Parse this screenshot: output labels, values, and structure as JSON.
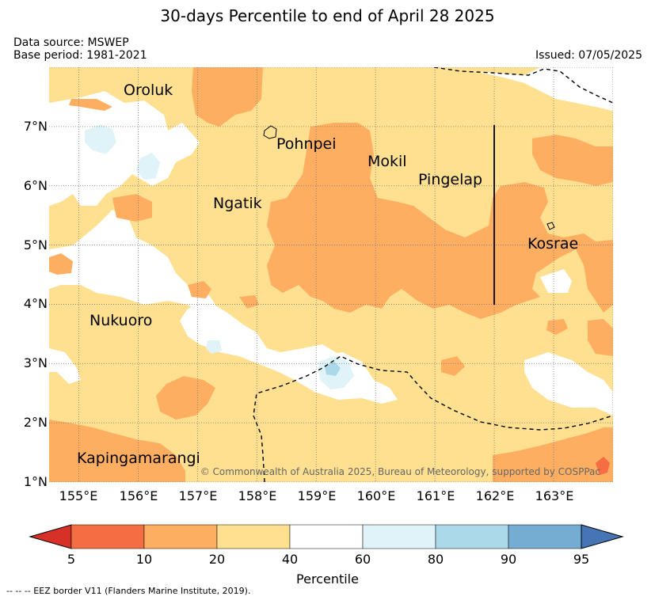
{
  "title": "30-days Percentile to end of April 28 2025",
  "data_source": "Data source: MSWEP",
  "base_period": "Base period: 1981-2021",
  "issued": "Issued: 07/05/2025",
  "copyright": "© Commonwealth of Australia 2025, Bureau of Meteorology, supported by COSPPac",
  "footer": "--  --  -- EEZ border V11 (Flanders Marine Institute, 2019).",
  "map": {
    "lon_range": [
      154.5,
      164.0
    ],
    "lat_range": [
      1.0,
      8.0
    ],
    "lat_labels": [
      "7°N",
      "6°N",
      "5°N",
      "4°N",
      "3°N",
      "2°N",
      "1°N"
    ],
    "lon_labels": [
      "155°E",
      "156°E",
      "157°E",
      "158°E",
      "159°E",
      "160°E",
      "161°E",
      "162°E",
      "163°E"
    ],
    "places": [
      {
        "name": "Oroluk"
      },
      {
        "name": "Pohnpei"
      },
      {
        "name": "Mokil"
      },
      {
        "name": "Pingelap"
      },
      {
        "name": "Ngatik"
      },
      {
        "name": "Kosrae"
      },
      {
        "name": "Nukuoro"
      },
      {
        "name": "Kapingamarangi"
      }
    ]
  },
  "colorbar": {
    "label": "Percentile",
    "ticks": [
      "5",
      "10",
      "20",
      "40",
      "60",
      "80",
      "90",
      "95"
    ],
    "colors": {
      "below_5": "#d73027",
      "p5_10": "#f46d43",
      "p10_20": "#fdae61",
      "p20_40": "#fee090",
      "p40_60": "#ffffff",
      "p60_80": "#e0f3f8",
      "p80_90": "#abd9e9",
      "p90_95": "#74add1",
      "above_95": "#4575b4"
    }
  }
}
